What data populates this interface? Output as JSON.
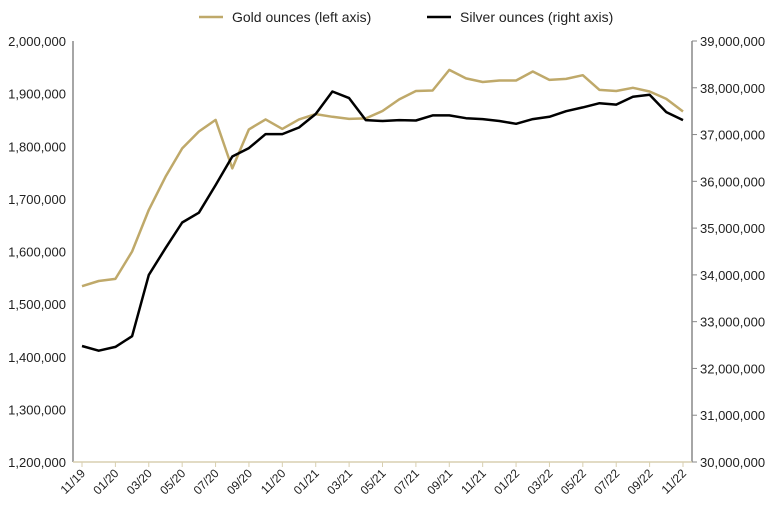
{
  "chart_data": {
    "type": "line",
    "legend_position": "top",
    "grid": false,
    "x": [
      "11/19",
      "12/19",
      "01/20",
      "02/20",
      "03/20",
      "04/20",
      "05/20",
      "06/20",
      "07/20",
      "08/20",
      "09/20",
      "10/20",
      "11/20",
      "12/20",
      "01/21",
      "02/21",
      "03/21",
      "04/21",
      "05/21",
      "06/21",
      "07/21",
      "08/21",
      "09/21",
      "10/21",
      "11/21",
      "12/21",
      "01/22",
      "02/22",
      "03/22",
      "04/22",
      "05/22",
      "06/22",
      "07/22",
      "08/22",
      "09/22",
      "10/22",
      "11/22"
    ],
    "xticks": [
      "11/19",
      "01/20",
      "03/20",
      "05/20",
      "07/20",
      "09/20",
      "11/20",
      "01/21",
      "03/21",
      "05/21",
      "07/21",
      "09/21",
      "11/21",
      "01/22",
      "03/22",
      "05/22",
      "07/22",
      "09/22",
      "11/22"
    ],
    "left_axis": {
      "ylim": [
        1200000,
        2000000
      ],
      "ticks": [
        "1,200,000",
        "1,300,000",
        "1,400,000",
        "1,500,000",
        "1,600,000",
        "1,700,000",
        "1,800,000",
        "1,900,000",
        "2,000,000"
      ]
    },
    "right_axis": {
      "ylim": [
        30000000,
        39000000
      ],
      "ticks": [
        "30,000,000",
        "31,000,000",
        "32,000,000",
        "33,000,000",
        "34,000,000",
        "35,000,000",
        "36,000,000",
        "37,000,000",
        "38,000,000",
        "39,000,000"
      ]
    },
    "series": [
      {
        "name": "Gold ounces (left axis)",
        "axis": "left",
        "color": "#BFA96A",
        "values": [
          1534000,
          1544000,
          1548000,
          1600000,
          1679000,
          1742000,
          1796000,
          1828000,
          1850000,
          1758000,
          1832000,
          1851000,
          1833000,
          1851000,
          1861000,
          1856000,
          1852000,
          1853000,
          1867000,
          1889000,
          1905000,
          1906000,
          1945000,
          1929000,
          1922000,
          1925000,
          1925000,
          1942000,
          1926000,
          1928000,
          1935000,
          1907000,
          1905000,
          1911000,
          1904000,
          1890000,
          1866000
        ]
      },
      {
        "name": "Silver ounces (right axis)",
        "axis": "right",
        "color": "#000000",
        "values": [
          32480000,
          32380000,
          32460000,
          32690000,
          34000000,
          34570000,
          35120000,
          35330000,
          35920000,
          36530000,
          36710000,
          37010000,
          37010000,
          37150000,
          37440000,
          37920000,
          37780000,
          37310000,
          37290000,
          37310000,
          37300000,
          37410000,
          37410000,
          37350000,
          37330000,
          37290000,
          37230000,
          37330000,
          37380000,
          37500000,
          37580000,
          37670000,
          37640000,
          37810000,
          37850000,
          37480000,
          37310000
        ]
      }
    ]
  }
}
